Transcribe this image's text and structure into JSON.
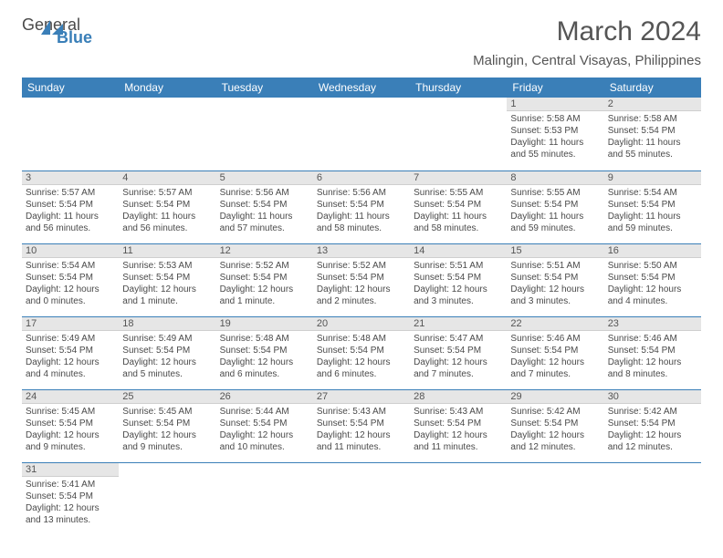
{
  "logo": {
    "line1": "General",
    "line2": "Blue"
  },
  "title": "March 2024",
  "location": "Malingin, Central Visayas, Philippines",
  "colors": {
    "header_bg": "#3a7fb8",
    "header_text": "#ffffff",
    "day_head_bg": "#e6e6e6",
    "text": "#4a4a4a",
    "row_border": "#3a7fb8"
  },
  "weekdays": [
    "Sunday",
    "Monday",
    "Tuesday",
    "Wednesday",
    "Thursday",
    "Friday",
    "Saturday"
  ],
  "weeks": [
    [
      null,
      null,
      null,
      null,
      null,
      {
        "n": "1",
        "sunrise": "Sunrise: 5:58 AM",
        "sunset": "Sunset: 5:53 PM",
        "daylight": "Daylight: 11 hours and 55 minutes."
      },
      {
        "n": "2",
        "sunrise": "Sunrise: 5:58 AM",
        "sunset": "Sunset: 5:54 PM",
        "daylight": "Daylight: 11 hours and 55 minutes."
      }
    ],
    [
      {
        "n": "3",
        "sunrise": "Sunrise: 5:57 AM",
        "sunset": "Sunset: 5:54 PM",
        "daylight": "Daylight: 11 hours and 56 minutes."
      },
      {
        "n": "4",
        "sunrise": "Sunrise: 5:57 AM",
        "sunset": "Sunset: 5:54 PM",
        "daylight": "Daylight: 11 hours and 56 minutes."
      },
      {
        "n": "5",
        "sunrise": "Sunrise: 5:56 AM",
        "sunset": "Sunset: 5:54 PM",
        "daylight": "Daylight: 11 hours and 57 minutes."
      },
      {
        "n": "6",
        "sunrise": "Sunrise: 5:56 AM",
        "sunset": "Sunset: 5:54 PM",
        "daylight": "Daylight: 11 hours and 58 minutes."
      },
      {
        "n": "7",
        "sunrise": "Sunrise: 5:55 AM",
        "sunset": "Sunset: 5:54 PM",
        "daylight": "Daylight: 11 hours and 58 minutes."
      },
      {
        "n": "8",
        "sunrise": "Sunrise: 5:55 AM",
        "sunset": "Sunset: 5:54 PM",
        "daylight": "Daylight: 11 hours and 59 minutes."
      },
      {
        "n": "9",
        "sunrise": "Sunrise: 5:54 AM",
        "sunset": "Sunset: 5:54 PM",
        "daylight": "Daylight: 11 hours and 59 minutes."
      }
    ],
    [
      {
        "n": "10",
        "sunrise": "Sunrise: 5:54 AM",
        "sunset": "Sunset: 5:54 PM",
        "daylight": "Daylight: 12 hours and 0 minutes."
      },
      {
        "n": "11",
        "sunrise": "Sunrise: 5:53 AM",
        "sunset": "Sunset: 5:54 PM",
        "daylight": "Daylight: 12 hours and 1 minute."
      },
      {
        "n": "12",
        "sunrise": "Sunrise: 5:52 AM",
        "sunset": "Sunset: 5:54 PM",
        "daylight": "Daylight: 12 hours and 1 minute."
      },
      {
        "n": "13",
        "sunrise": "Sunrise: 5:52 AM",
        "sunset": "Sunset: 5:54 PM",
        "daylight": "Daylight: 12 hours and 2 minutes."
      },
      {
        "n": "14",
        "sunrise": "Sunrise: 5:51 AM",
        "sunset": "Sunset: 5:54 PM",
        "daylight": "Daylight: 12 hours and 3 minutes."
      },
      {
        "n": "15",
        "sunrise": "Sunrise: 5:51 AM",
        "sunset": "Sunset: 5:54 PM",
        "daylight": "Daylight: 12 hours and 3 minutes."
      },
      {
        "n": "16",
        "sunrise": "Sunrise: 5:50 AM",
        "sunset": "Sunset: 5:54 PM",
        "daylight": "Daylight: 12 hours and 4 minutes."
      }
    ],
    [
      {
        "n": "17",
        "sunrise": "Sunrise: 5:49 AM",
        "sunset": "Sunset: 5:54 PM",
        "daylight": "Daylight: 12 hours and 4 minutes."
      },
      {
        "n": "18",
        "sunrise": "Sunrise: 5:49 AM",
        "sunset": "Sunset: 5:54 PM",
        "daylight": "Daylight: 12 hours and 5 minutes."
      },
      {
        "n": "19",
        "sunrise": "Sunrise: 5:48 AM",
        "sunset": "Sunset: 5:54 PM",
        "daylight": "Daylight: 12 hours and 6 minutes."
      },
      {
        "n": "20",
        "sunrise": "Sunrise: 5:48 AM",
        "sunset": "Sunset: 5:54 PM",
        "daylight": "Daylight: 12 hours and 6 minutes."
      },
      {
        "n": "21",
        "sunrise": "Sunrise: 5:47 AM",
        "sunset": "Sunset: 5:54 PM",
        "daylight": "Daylight: 12 hours and 7 minutes."
      },
      {
        "n": "22",
        "sunrise": "Sunrise: 5:46 AM",
        "sunset": "Sunset: 5:54 PM",
        "daylight": "Daylight: 12 hours and 7 minutes."
      },
      {
        "n": "23",
        "sunrise": "Sunrise: 5:46 AM",
        "sunset": "Sunset: 5:54 PM",
        "daylight": "Daylight: 12 hours and 8 minutes."
      }
    ],
    [
      {
        "n": "24",
        "sunrise": "Sunrise: 5:45 AM",
        "sunset": "Sunset: 5:54 PM",
        "daylight": "Daylight: 12 hours and 9 minutes."
      },
      {
        "n": "25",
        "sunrise": "Sunrise: 5:45 AM",
        "sunset": "Sunset: 5:54 PM",
        "daylight": "Daylight: 12 hours and 9 minutes."
      },
      {
        "n": "26",
        "sunrise": "Sunrise: 5:44 AM",
        "sunset": "Sunset: 5:54 PM",
        "daylight": "Daylight: 12 hours and 10 minutes."
      },
      {
        "n": "27",
        "sunrise": "Sunrise: 5:43 AM",
        "sunset": "Sunset: 5:54 PM",
        "daylight": "Daylight: 12 hours and 11 minutes."
      },
      {
        "n": "28",
        "sunrise": "Sunrise: 5:43 AM",
        "sunset": "Sunset: 5:54 PM",
        "daylight": "Daylight: 12 hours and 11 minutes."
      },
      {
        "n": "29",
        "sunrise": "Sunrise: 5:42 AM",
        "sunset": "Sunset: 5:54 PM",
        "daylight": "Daylight: 12 hours and 12 minutes."
      },
      {
        "n": "30",
        "sunrise": "Sunrise: 5:42 AM",
        "sunset": "Sunset: 5:54 PM",
        "daylight": "Daylight: 12 hours and 12 minutes."
      }
    ],
    [
      {
        "n": "31",
        "sunrise": "Sunrise: 5:41 AM",
        "sunset": "Sunset: 5:54 PM",
        "daylight": "Daylight: 12 hours and 13 minutes."
      },
      null,
      null,
      null,
      null,
      null,
      null
    ]
  ]
}
